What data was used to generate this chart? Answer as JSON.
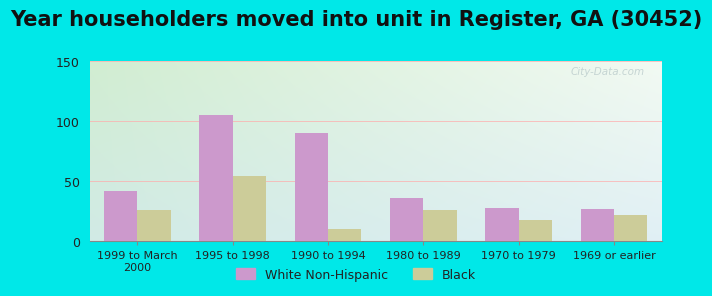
{
  "title": "Year householders moved into unit in Register, GA (30452)",
  "categories": [
    "1999 to March\n2000",
    "1995 to 1998",
    "1990 to 1994",
    "1980 to 1989",
    "1970 to 1979",
    "1969 or earlier"
  ],
  "white_values": [
    42,
    105,
    90,
    36,
    28,
    27
  ],
  "black_values": [
    26,
    54,
    10,
    26,
    18,
    22
  ],
  "white_color": "#cc99cc",
  "black_color": "#cccc99",
  "background_outer": "#00e8e8",
  "ylim": [
    0,
    150
  ],
  "yticks": [
    0,
    50,
    100,
    150
  ],
  "bar_width": 0.35,
  "title_fontsize": 15,
  "title_color": "#111111",
  "legend_white": "White Non-Hispanic",
  "legend_black": "Black",
  "watermark": "City-Data.com",
  "grad_colors": [
    "#d8edd8",
    "#e8f5e8",
    "#ddeedd",
    "#d0e8e8",
    "#c8e0f0",
    "#d0e8f0"
  ]
}
